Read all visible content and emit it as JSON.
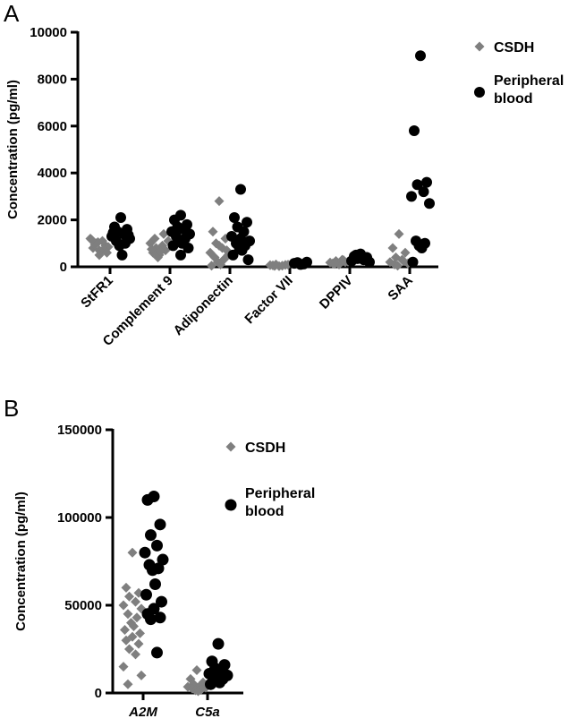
{
  "colors": {
    "csdh": "#7f7f7f",
    "blood": "#000000"
  },
  "chart_data": [
    {
      "type": "scatter",
      "panel": "A",
      "ylabel": "Concentration (pg/ml)",
      "ylim": [
        0,
        10000
      ],
      "yticks": [
        0,
        2000,
        4000,
        6000,
        8000,
        10000
      ],
      "categories": [
        "StFR1",
        "Complement 9",
        "Adiponectin",
        "Factor VII",
        "DPPIV",
        "SAA"
      ],
      "legend": [
        "CSDH",
        "Peripheral blood"
      ],
      "legend_position": "top-right",
      "series": [
        {
          "name": "CSDH",
          "marker": "diamond",
          "values": [
            [
              700,
              800,
              900,
              1000,
              1100,
              1200,
              850,
              950,
              750,
              1050,
              650,
              1150,
              600,
              500
            ],
            [
              500,
              600,
              700,
              800,
              900,
              1000,
              1100,
              1200,
              1400,
              400,
              650,
              750
            ],
            [
              2800,
              1500,
              1200,
              1000,
              800,
              600,
              500,
              400,
              300,
              200,
              100,
              50,
              700,
              900
            ],
            [
              30,
              60,
              80,
              100,
              50,
              70,
              90,
              40
            ],
            [
              100,
              150,
              200,
              250,
              300,
              180,
              220,
              120,
              280
            ],
            [
              1400,
              800,
              600,
              400,
              300,
              200,
              150,
              100,
              250,
              50
            ]
          ]
        },
        {
          "name": "Peripheral blood",
          "marker": "circle",
          "values": [
            [
              2100,
              1700,
              1600,
              1500,
              1400,
              1300,
              1200,
              1100,
              1000,
              900,
              500,
              1450,
              1350
            ],
            [
              2200,
              2000,
              1800,
              1700,
              1600,
              1500,
              1400,
              1300,
              1200,
              1100,
              1000,
              900,
              800,
              500
            ],
            [
              3300,
              2100,
              1900,
              1700,
              1500,
              1300,
              1100,
              1000,
              900,
              800,
              700,
              500,
              300,
              1200
            ],
            [
              100,
              150,
              200,
              180,
              120
            ],
            [
              550,
              450,
              400,
              350,
              300,
              250,
              200,
              500
            ],
            [
              9000,
              5800,
              3600,
              3500,
              3200,
              3000,
              2700,
              1100,
              1000,
              900,
              800,
              200
            ]
          ]
        }
      ]
    },
    {
      "type": "scatter",
      "panel": "B",
      "ylabel": "Concentration (pg/ml)",
      "ylim": [
        0,
        150000
      ],
      "yticks": [
        0,
        50000,
        100000,
        150000
      ],
      "categories": [
        "A2M",
        "C5a"
      ],
      "legend": [
        "CSDH",
        "Peripheral blood"
      ],
      "legend_position": "top-right",
      "series": [
        {
          "name": "CSDH",
          "marker": "diamond",
          "values": [
            [
              80000,
              60000,
              57000,
              55000,
              52000,
              50000,
              48000,
              45000,
              43000,
              40000,
              38000,
              36000,
              34000,
              32000,
              30000,
              28000,
              25000,
              22000,
              15000,
              10000,
              5000
            ],
            [
              13000,
              8000,
              6000,
              5000,
              4000,
              3500,
              3000,
              2500,
              2000,
              1500,
              1000
            ]
          ]
        },
        {
          "name": "Peripheral blood",
          "marker": "circle",
          "values": [
            [
              112000,
              110000,
              96000,
              90000,
              84000,
              80000,
              76000,
              73000,
              71000,
              70000,
              62000,
              56000,
              52000,
              48000,
              45000,
              43000,
              42000,
              23000
            ],
            [
              28000,
              18000,
              16000,
              14000,
              12000,
              11000,
              10000,
              9000,
              8000,
              7000,
              6000,
              5000
            ]
          ]
        }
      ]
    }
  ]
}
